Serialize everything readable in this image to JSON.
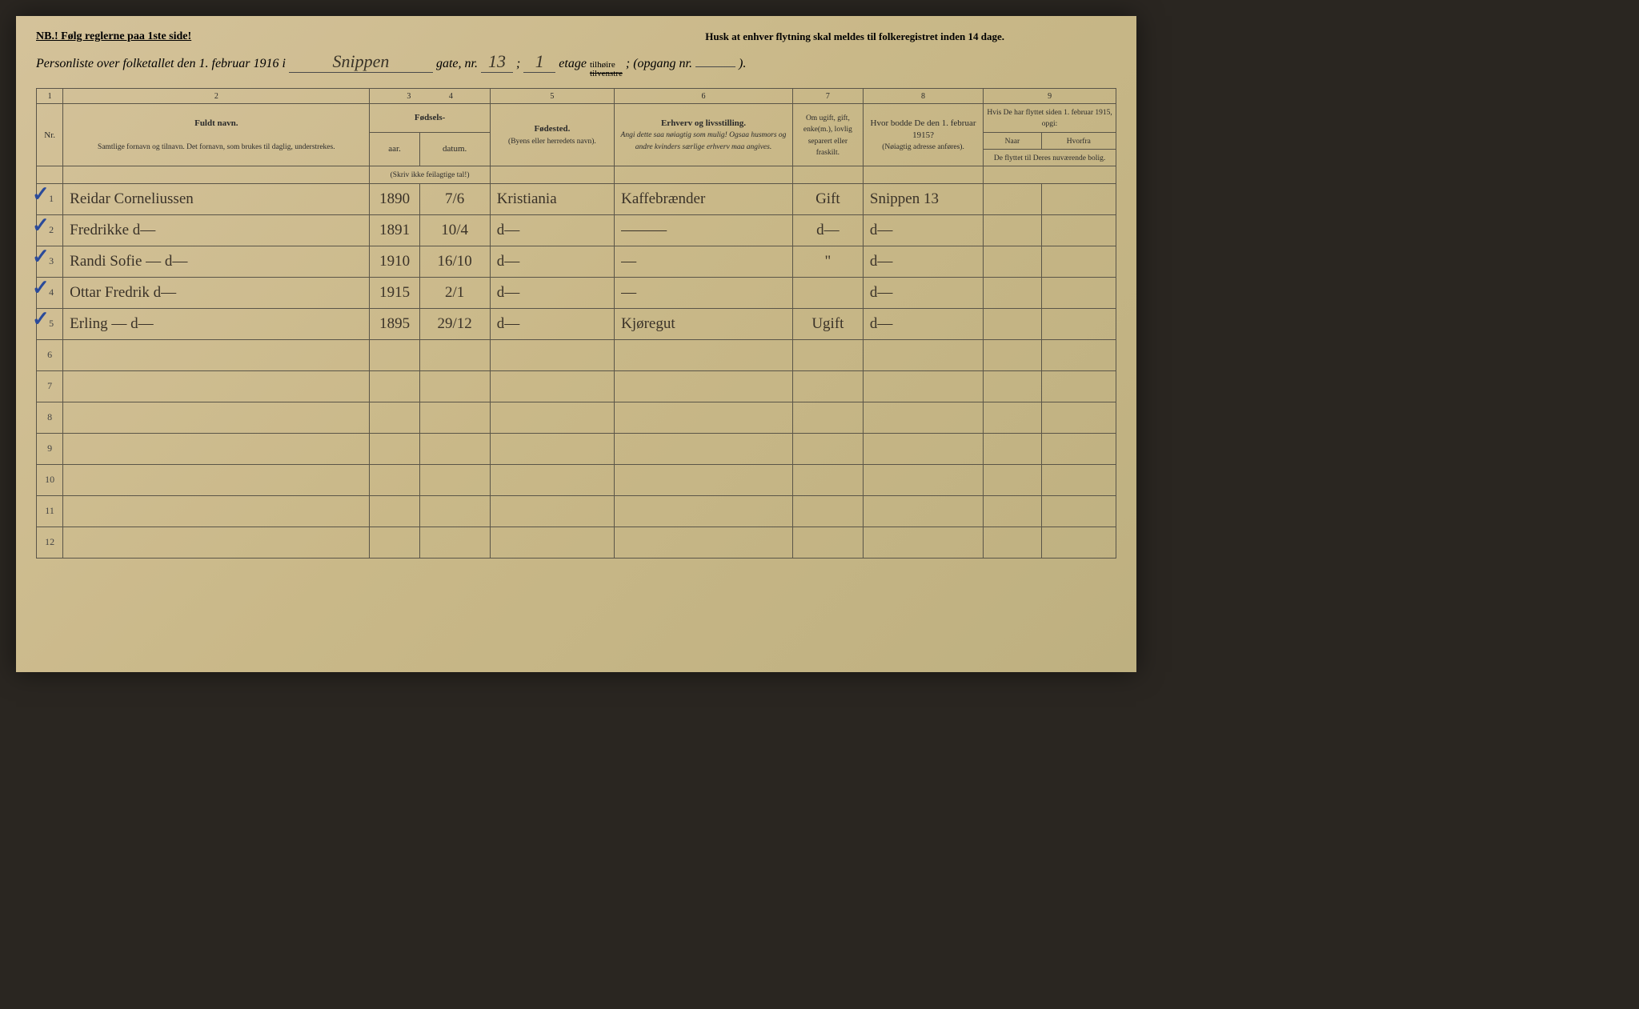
{
  "header": {
    "nb": "NB.! Følg reglerne paa 1ste side!",
    "husk": "Husk at enhver flytning skal meldes til folkeregistret inden 14 dage.",
    "personliste_pre": "Personliste over folketallet den 1. februar 1916 i",
    "street": "Snippen",
    "gate_label": "gate, nr.",
    "nr": "13",
    "semicolon": ";",
    "etage_nr": "1",
    "etage_label": "etage",
    "tilhoire": "tilhøire",
    "tilvenstre": "tilvenstre",
    "opgang_label": "; (opgang nr.",
    "opgang_nr": "",
    "close": ")."
  },
  "colnums": [
    "1",
    "2",
    "3",
    "4",
    "5",
    "6",
    "7",
    "8",
    "9"
  ],
  "columns": {
    "nr": "Nr.",
    "navn_title": "Fuldt navn.",
    "navn_sub": "Samtlige fornavn og tilnavn. Det fornavn, som brukes til daglig, understrekes.",
    "fodsels": "Fødsels-",
    "aar": "aar.",
    "datum": "datum.",
    "fodsels_note": "(Skriv ikke feilagtige tal!)",
    "fodested": "Fødested.",
    "fodested_sub": "(Byens eller herredets navn).",
    "erhverv": "Erhverv og livsstilling.",
    "erhverv_sub": "Angi dette saa nøiagtig som mulig! Ogsaa husmors og andre kvinders særlige erhverv maa angives.",
    "civilstand": "Om ugift, gift, enke(m.), lovlig separert eller fraskilt.",
    "bodde": "Hvor bodde De den 1. februar 1915?",
    "bodde_sub": "(Nøiagtig adresse anføres).",
    "flyttet": "Hvis De har flyttet siden 1. februar 1915, opgi:",
    "naar": "Naar",
    "hvorfra": "Hvorfra",
    "flyttet_sub": "De flyttet til Deres nuværende bolig."
  },
  "rows": [
    {
      "nr": "1",
      "check": true,
      "navn": "Reidar Corneliussen",
      "aar": "1890",
      "datum": "7/6",
      "sted": "Kristiania",
      "erhverv": "Kaffebrænder",
      "civil": "Gift",
      "bodde": "Snippen 13",
      "n": "",
      "h": ""
    },
    {
      "nr": "2",
      "check": true,
      "navn": "Fredrikke          d—",
      "aar": "1891",
      "datum": "10/4",
      "sted": "d—",
      "erhverv": "———",
      "civil": "d—",
      "bodde": "d—",
      "n": "",
      "h": ""
    },
    {
      "nr": "3",
      "check": true,
      "navn": "Randi Sofie   —   d—",
      "aar": "1910",
      "datum": "16/10",
      "sted": "d—",
      "erhverv": "—",
      "civil": "\"",
      "bodde": "d—",
      "n": "",
      "h": ""
    },
    {
      "nr": "4",
      "check": true,
      "navn": "Ottar Fredrik      d—",
      "aar": "1915",
      "datum": "2/1",
      "sted": "d—",
      "erhverv": "—",
      "civil": "",
      "bodde": "d—",
      "n": "",
      "h": ""
    },
    {
      "nr": "5",
      "check": true,
      "navn": "Erling    —        d—",
      "aar": "1895",
      "datum": "29/12",
      "sted": "d—",
      "erhverv": "Kjøregut",
      "civil": "Ugift",
      "bodde": "d—",
      "n": "",
      "h": ""
    }
  ],
  "empty_rows": [
    "6",
    "7",
    "8",
    "9",
    "10",
    "11",
    "12"
  ],
  "styling": {
    "page_bg": "#d4c29a",
    "border_color": "#5a5548",
    "ink_color": "#3a3228",
    "check_color": "#2a4a9a",
    "print_color": "#2a2a2a"
  }
}
